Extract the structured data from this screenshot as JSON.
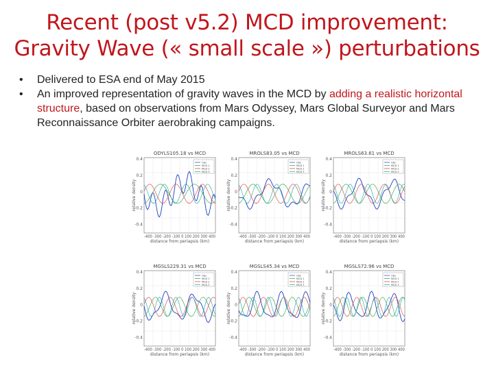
{
  "slide": {
    "title_line1": "Recent (post v5.2) MCD improvement:",
    "title_line2": "Gravity Wave (« small scale ») perturbations",
    "bullets": [
      {
        "text": "Delivered to ESA end of May 2015"
      },
      {
        "text_a": "An improved representation of gravity waves in the MCD by ",
        "text_red": "adding a realistic horizontal structure",
        "text_b": ", based on observations from Mars Odyssey, Mars Global Surveyor and Mars Reconnaissance Orbiter aerobraking campaigns."
      }
    ],
    "bullet_marker": "•"
  },
  "colors": {
    "title": "#c0161c",
    "highlight": "#c0161c",
    "obs": "#1f3fbf",
    "model1": "#2a9d3a",
    "model2": "#d33",
    "model3": "#16a3a3"
  },
  "panels": [
    {
      "title": "ODYLS105.18 vs MCD",
      "xlabel": "distance from periapsis (km)",
      "ylabel": "relative density"
    },
    {
      "title": "MROLS83.05 vs MCD",
      "xlabel": "distance from periapsis (km)",
      "ylabel": "relative density"
    },
    {
      "title": "MROLS63.61 vs MCD",
      "xlabel": "distance from periapsis (km)",
      "ylabel": "relative density"
    },
    {
      "title": "MGSLS229.31 vs MCD",
      "xlabel": "distance from periapsis (km)",
      "ylabel": "relative density"
    },
    {
      "title": "MGSLS45.34 vs MCD",
      "xlabel": "distance from periapsis (km)",
      "ylabel": "relative density"
    },
    {
      "title": "MGSLS72.96 vs MCD",
      "xlabel": "distance from periapsis (km)",
      "ylabel": "relative density"
    }
  ],
  "yticks_top": [
    "0.4",
    "0.2",
    "0",
    "-0.2",
    "-0.4"
  ],
  "xticks": [
    "-400",
    "-300",
    "-200",
    "-100",
    "0",
    "100",
    "200",
    "300",
    "400"
  ],
  "legend": [
    "Obs",
    "MCD 1",
    "MCD 2",
    "MCD 3"
  ]
}
